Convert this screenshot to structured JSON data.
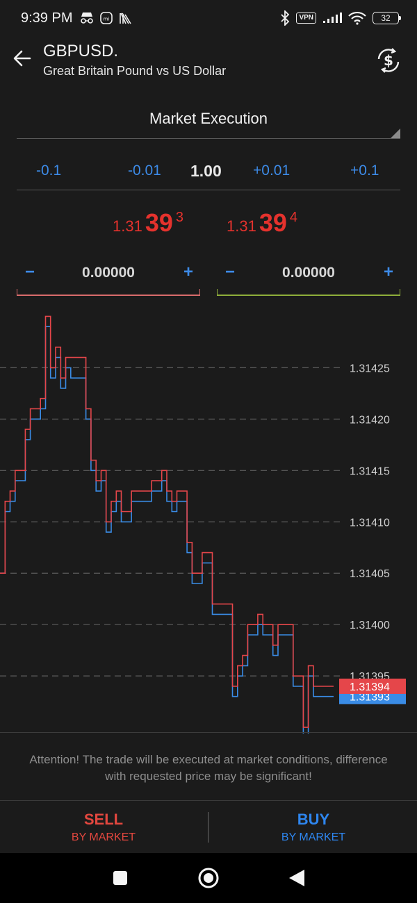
{
  "status_bar": {
    "time": "9:39 PM",
    "vpn": "VPN",
    "battery": "32",
    "icons": [
      "incognito-icon",
      "mi-icon",
      "app-icon",
      "bluetooth-icon",
      "vpn-icon",
      "signal-icon",
      "wifi-icon",
      "battery-icon"
    ]
  },
  "header": {
    "symbol": "GBPUSD.",
    "description": "Great Britain Pound vs US Dollar",
    "back_icon": "arrow-left-icon",
    "currency_icon": "currency-exchange-icon"
  },
  "execution": {
    "label": "Market Execution"
  },
  "volume": {
    "minus_big": "-0.1",
    "minus_small": "-0.01",
    "value": "1.00",
    "plus_small": "+0.01",
    "plus_big": "+0.1"
  },
  "prices": {
    "bid": {
      "prefix": "1.31",
      "big": "39",
      "sup": "3"
    },
    "ask": {
      "prefix": "1.31",
      "big": "39",
      "sup": "4"
    },
    "color": "#e5322d"
  },
  "stop_loss": {
    "minus": "−",
    "value": "0.00000",
    "plus": "+"
  },
  "take_profit": {
    "minus": "−",
    "value": "0.00000",
    "plus": "+"
  },
  "chart_data": {
    "type": "line",
    "y_ticks": [
      "1.31425",
      "1.31420",
      "1.31415",
      "1.31410",
      "1.31405",
      "1.31400",
      "1.31395"
    ],
    "ylim": [
      1.313894,
      1.314305
    ],
    "grid": true,
    "series": [
      {
        "color": "#e5464a",
        "y": [
          1.31405,
          1.31412,
          1.31413,
          1.31415,
          1.31415,
          1.31419,
          1.31421,
          1.31421,
          1.31422,
          1.3143,
          1.31425,
          1.31427,
          1.31424,
          1.31426,
          1.31426,
          1.31426,
          1.31426,
          1.31421,
          1.31416,
          1.31414,
          1.31415,
          1.3141,
          1.31412,
          1.31413,
          1.31411,
          1.31411,
          1.31413,
          1.31413,
          1.31413,
          1.31413,
          1.31414,
          1.31414,
          1.31415,
          1.31413,
          1.31412,
          1.31413,
          1.31413,
          1.31408,
          1.31405,
          1.31405,
          1.31407,
          1.31407,
          1.31402,
          1.31402,
          1.31402,
          1.31402,
          1.31394,
          1.31396,
          1.31397,
          1.314,
          1.314,
          1.31401,
          1.314,
          1.314,
          1.31398,
          1.314,
          1.314,
          1.314,
          1.31395,
          1.31395,
          1.3139,
          1.31396,
          1.31394,
          1.31394,
          1.31394,
          1.31394,
          1.31394
        ],
        "label": "1.31394"
      },
      {
        "color": "#3a8ce6",
        "y": [
          1.31405,
          1.31411,
          1.31412,
          1.31414,
          1.31414,
          1.31418,
          1.3142,
          1.3142,
          1.31421,
          1.31429,
          1.31424,
          1.31426,
          1.31423,
          1.31425,
          1.31424,
          1.31424,
          1.31424,
          1.3142,
          1.31415,
          1.31413,
          1.31414,
          1.31409,
          1.31411,
          1.31412,
          1.3141,
          1.3141,
          1.31412,
          1.31412,
          1.31412,
          1.31412,
          1.31413,
          1.31413,
          1.31414,
          1.31412,
          1.31411,
          1.31412,
          1.31412,
          1.31407,
          1.31404,
          1.31404,
          1.31406,
          1.31406,
          1.31401,
          1.31401,
          1.31401,
          1.31401,
          1.31393,
          1.31395,
          1.31396,
          1.31399,
          1.31399,
          1.314,
          1.31399,
          1.31399,
          1.31397,
          1.31399,
          1.31399,
          1.31399,
          1.31394,
          1.31394,
          1.31389,
          1.31395,
          1.31393,
          1.31393,
          1.31393,
          1.31393,
          1.31393
        ],
        "label": "1.31393"
      }
    ]
  },
  "attention": "Attention! The trade will be executed at market conditions, difference with requested price may be significant!",
  "actions": {
    "sell_title": "SELL",
    "sell_sub": "BY MARKET",
    "buy_title": "BUY",
    "buy_sub": "BY MARKET"
  }
}
